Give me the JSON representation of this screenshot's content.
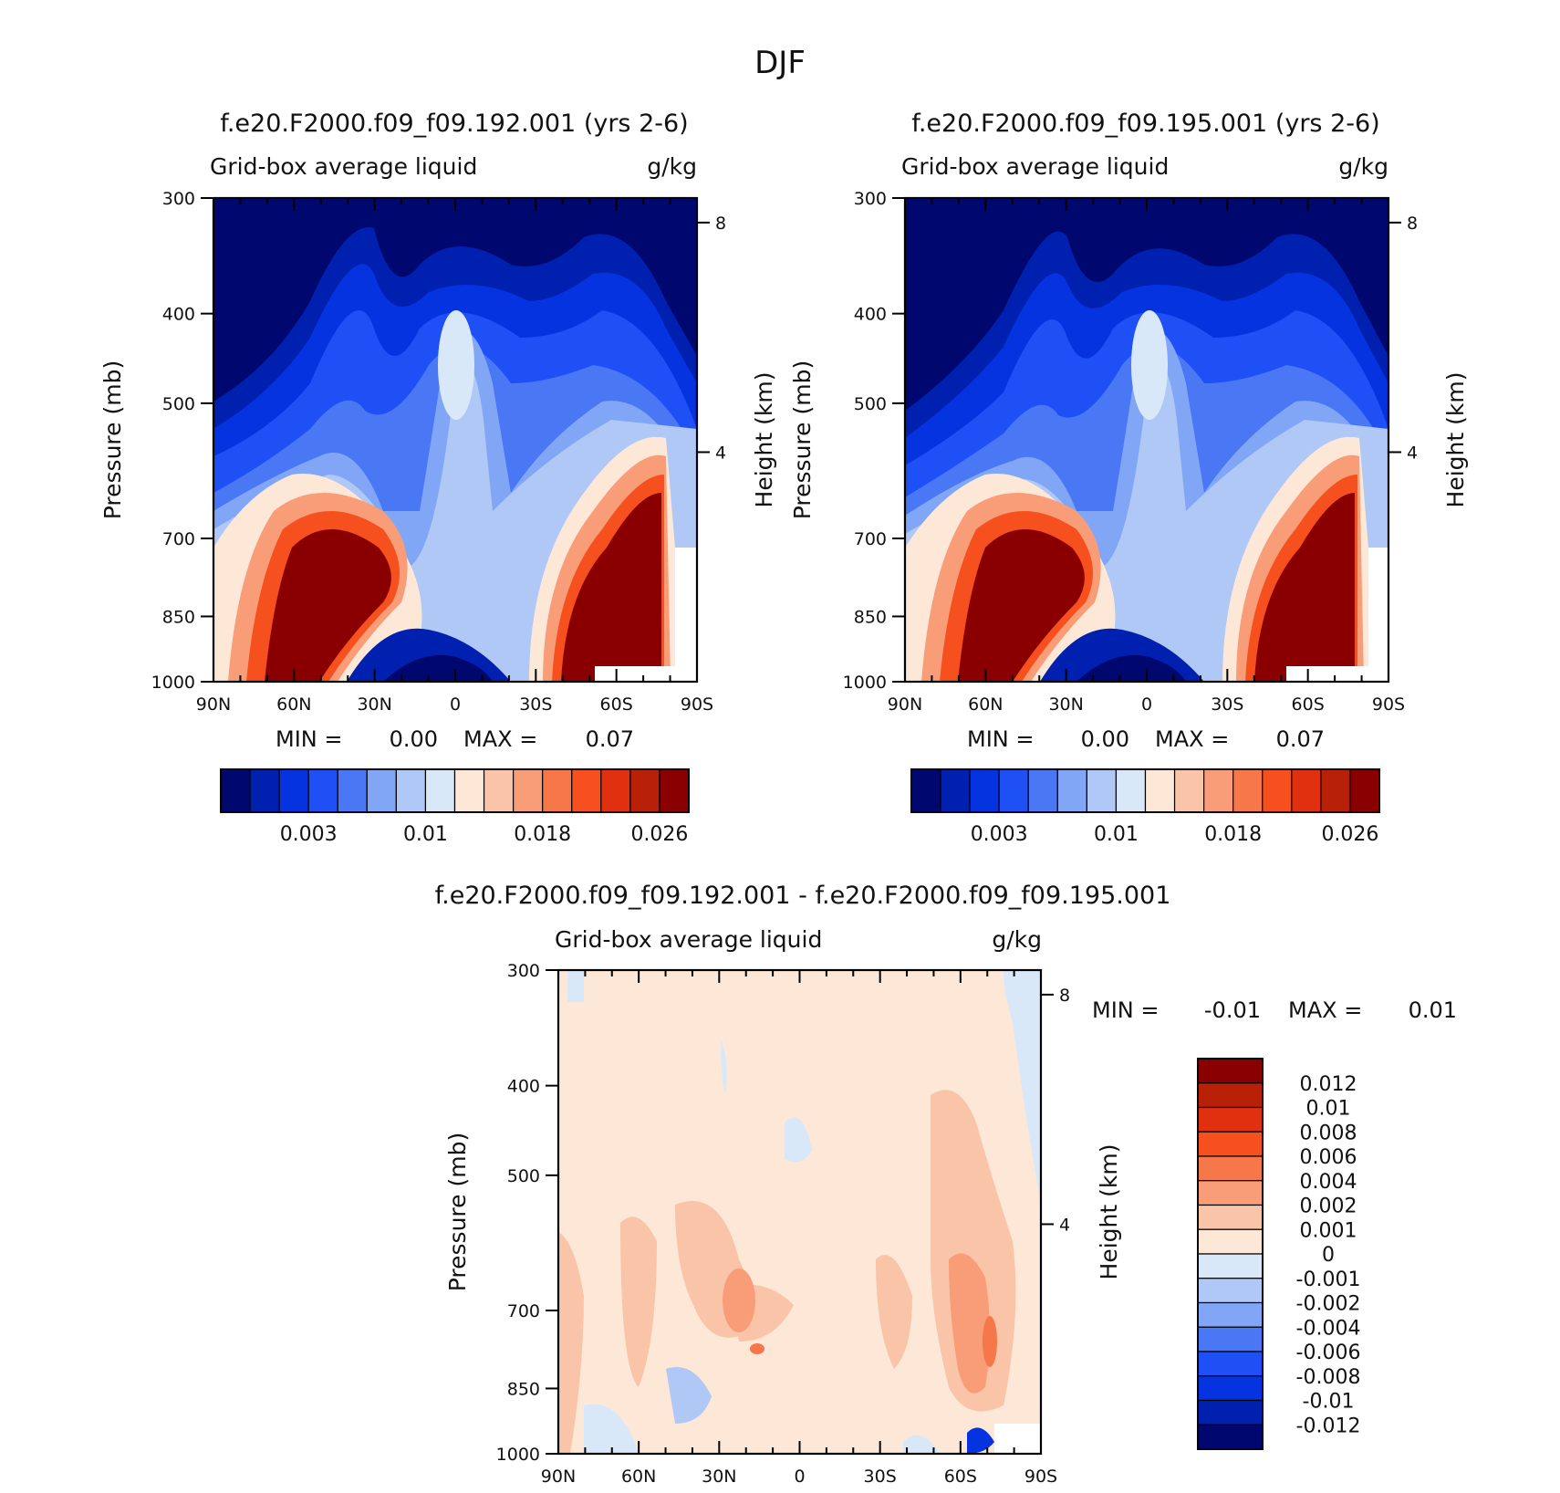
{
  "page_title": "DJF",
  "colors": {
    "abs_scale": [
      "#00076e",
      "#0020b0",
      "#0533e0",
      "#1e50f5",
      "#4a78f5",
      "#80a6f5",
      "#b0c8f5",
      "#d8e8f8",
      "#fde8d8",
      "#f9c4a8",
      "#f89d78",
      "#f6784a",
      "#f5501e",
      "#e03010",
      "#b82008",
      "#8a0000"
    ],
    "diff_scale": [
      "#00076e",
      "#0020b0",
      "#0533e0",
      "#1e50f5",
      "#4a78f5",
      "#80a6f5",
      "#b0c8f5",
      "#d8e8f8",
      "#fde8d8",
      "#f9c4a8",
      "#f89d78",
      "#f6784a",
      "#f5501e",
      "#e03010",
      "#b82008",
      "#8a0000"
    ]
  },
  "chart_data": [
    {
      "type": "heatmap",
      "panel": "left",
      "title": "f.e20.F2000.f09_f09.192.001 (yrs 2-6)",
      "field": "Grid-box average liquid",
      "units": "g/kg",
      "ylabel": "Pressure (mb)",
      "ylabel_right": "Height (km)",
      "x_ticks": [
        "90N",
        "60N",
        "30N",
        "0",
        "30S",
        "60S",
        "90S"
      ],
      "y_ticks": [
        "300",
        "400",
        "500",
        "700",
        "850",
        "1000"
      ],
      "y_ticks_right": [
        "8",
        "4"
      ],
      "ylim": [
        1000,
        300
      ],
      "stats": {
        "min_label": "MIN =",
        "min": "0.00",
        "max_label": "MAX =",
        "max": "0.07"
      },
      "colorbar_labels": [
        "0.003",
        "0.01",
        "0.018",
        "0.026"
      ]
    },
    {
      "type": "heatmap",
      "panel": "right",
      "title": "f.e20.F2000.f09_f09.195.001 (yrs 2-6)",
      "field": "Grid-box average liquid",
      "units": "g/kg",
      "ylabel": "Pressure (mb)",
      "ylabel_right": "Height (km)",
      "x_ticks": [
        "90N",
        "60N",
        "30N",
        "0",
        "30S",
        "60S",
        "90S"
      ],
      "y_ticks": [
        "300",
        "400",
        "500",
        "700",
        "850",
        "1000"
      ],
      "y_ticks_right": [
        "8",
        "4"
      ],
      "ylim": [
        1000,
        300
      ],
      "stats": {
        "min_label": "MIN =",
        "min": "0.00",
        "max_label": "MAX =",
        "max": "0.07"
      },
      "colorbar_labels": [
        "0.003",
        "0.01",
        "0.018",
        "0.026"
      ]
    },
    {
      "type": "heatmap",
      "panel": "difference",
      "title": "f.e20.F2000.f09_f09.192.001 - f.e20.F2000.f09_f09.195.001",
      "field": "Grid-box average liquid",
      "units": "g/kg",
      "ylabel": "Pressure (mb)",
      "ylabel_right": "Height (km)",
      "x_ticks": [
        "90N",
        "60N",
        "30N",
        "0",
        "30S",
        "60S",
        "90S"
      ],
      "y_ticks": [
        "300",
        "400",
        "500",
        "700",
        "850",
        "1000"
      ],
      "y_ticks_right": [
        "8",
        "4"
      ],
      "ylim": [
        1000,
        300
      ],
      "stats": {
        "min_label": "MIN =",
        "min": "-0.01",
        "max_label": "MAX =",
        "max": "0.01"
      },
      "colorbar_labels": [
        "0.012",
        "0.01",
        "0.008",
        "0.006",
        "0.004",
        "0.002",
        "0.001",
        "0",
        "-0.001",
        "-0.002",
        "-0.004",
        "-0.006",
        "-0.008",
        "-0.01",
        "-0.012"
      ]
    }
  ]
}
